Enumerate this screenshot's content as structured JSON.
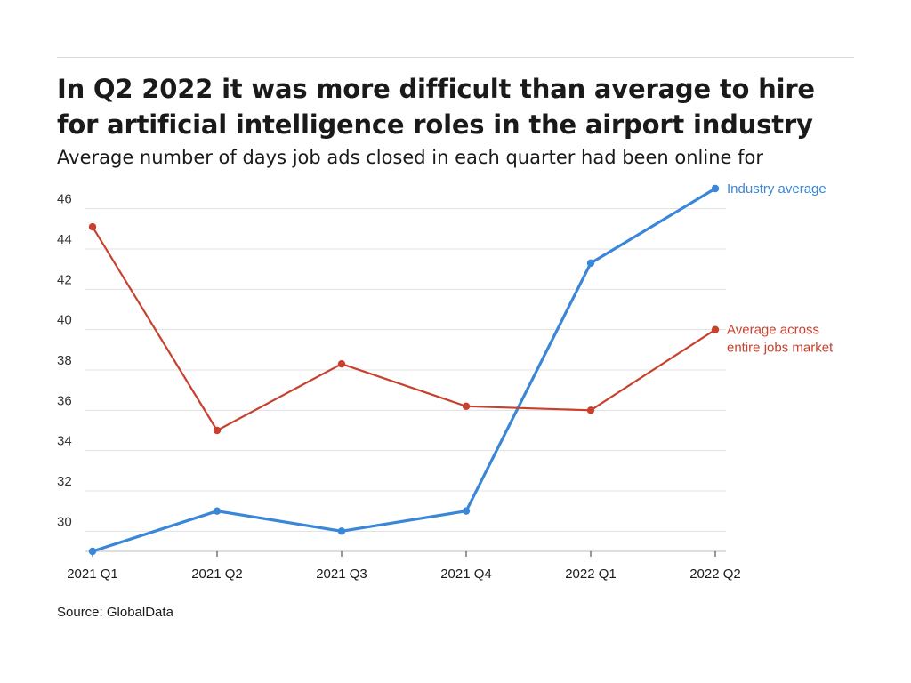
{
  "header": {
    "title": "In Q2 2022 it was more difficult than average to hire for artificial intelligence roles in the airport industry",
    "subtitle": "Average number of days job ads closed in each quarter had been online for"
  },
  "footer": {
    "source": "Source: GlobalData"
  },
  "colors": {
    "industry": "#3a86d9",
    "market": "#c8412e",
    "grid": "#e0e0e0",
    "axis": "#333333"
  },
  "chart_data": {
    "type": "line",
    "title": "In Q2 2022 it was more difficult than average to hire for artificial intelligence roles in the airport industry",
    "subtitle": "Average number of days job ads closed in each quarter had been online for",
    "categories": [
      "2021 Q1",
      "2021 Q2",
      "2021 Q3",
      "2021 Q4",
      "2022 Q1",
      "2022 Q2"
    ],
    "yticks": [
      30,
      32,
      34,
      36,
      38,
      40,
      42,
      44,
      46
    ],
    "ylim": [
      29,
      47
    ],
    "grid": true,
    "legend_placement": "right, at line ends",
    "series": [
      {
        "name": "Industry average",
        "label_lines": [
          "Industry average"
        ],
        "color": "#3a86d9",
        "values": [
          29,
          31,
          30,
          31,
          43.3,
          47
        ]
      },
      {
        "name": "Average across entire jobs market",
        "label_lines": [
          "Average across",
          "entire jobs market"
        ],
        "color": "#c8412e",
        "values": [
          45.1,
          35,
          38.3,
          36.2,
          36,
          40
        ]
      }
    ]
  }
}
